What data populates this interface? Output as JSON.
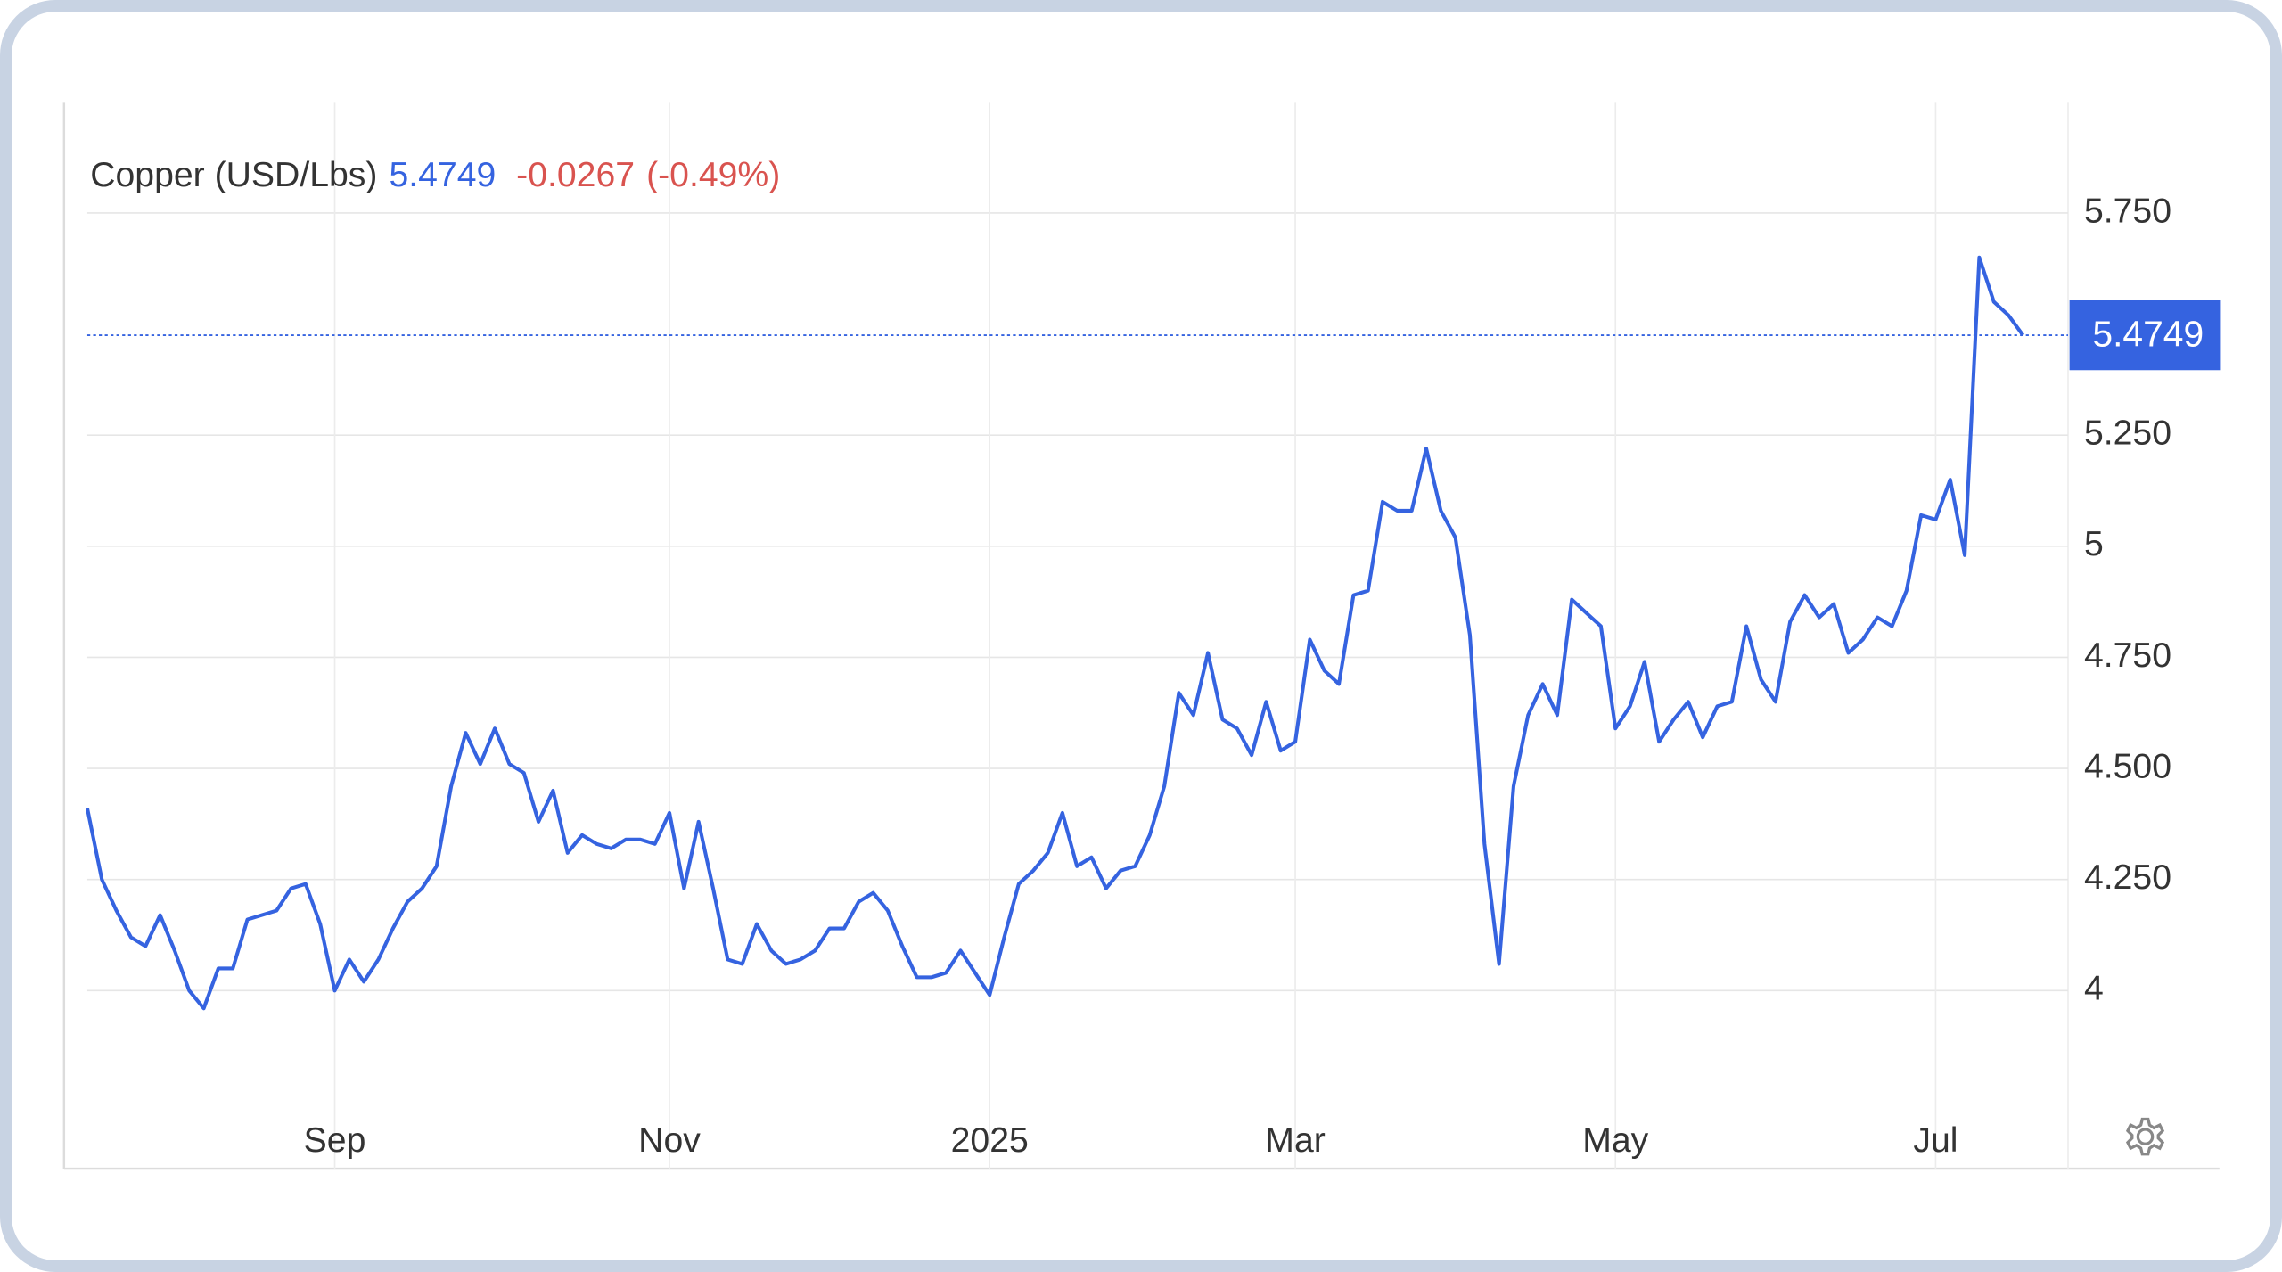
{
  "chart_data": {
    "type": "line",
    "title": "Copper (USD/Lbs)",
    "price": 5.4749,
    "change": -0.0267,
    "change_percent": "(-0.49%)",
    "categories": [
      null,
      null,
      null,
      null,
      null,
      null,
      null,
      null,
      null,
      null,
      null,
      null,
      null,
      null,
      null,
      null,
      null,
      "Sep",
      null,
      null,
      null,
      null,
      null,
      null,
      null,
      null,
      null,
      null,
      null,
      null,
      null,
      null,
      null,
      null,
      null,
      null,
      null,
      null,
      null,
      null,
      "Nov",
      null,
      null,
      null,
      null,
      null,
      null,
      null,
      null,
      null,
      null,
      null,
      null,
      null,
      null,
      null,
      null,
      null,
      null,
      null,
      null,
      null,
      "2025",
      null,
      null,
      null,
      null,
      null,
      null,
      null,
      null,
      null,
      null,
      null,
      null,
      null,
      null,
      null,
      null,
      null,
      null,
      null,
      null,
      "Mar",
      null,
      null,
      null,
      null,
      null,
      null,
      null,
      null,
      null,
      null,
      null,
      null,
      null,
      null,
      null,
      null,
      null,
      null,
      null,
      null,
      null,
      "May",
      null,
      null,
      null,
      null,
      null,
      null,
      null,
      null,
      null,
      null,
      null,
      null,
      null,
      null,
      null,
      null,
      null,
      null,
      null,
      null,
      null,
      "Jul",
      null,
      null,
      null,
      null,
      null,
      null
    ],
    "series": [
      {
        "name": "Copper",
        "color": "#3563e0",
        "values": [
          4.41,
          4.25,
          4.18,
          4.12,
          4.1,
          4.17,
          4.09,
          4.0,
          3.96,
          4.05,
          4.05,
          4.16,
          4.17,
          4.18,
          4.23,
          4.24,
          4.15,
          4.0,
          4.07,
          4.02,
          4.07,
          4.14,
          4.2,
          4.23,
          4.28,
          4.46,
          4.58,
          4.51,
          4.59,
          4.51,
          4.49,
          4.38,
          4.45,
          4.31,
          4.35,
          4.33,
          4.32,
          4.34,
          4.34,
          4.33,
          4.4,
          4.23,
          4.38,
          4.23,
          4.07,
          4.06,
          4.15,
          4.09,
          4.06,
          4.07,
          4.09,
          4.14,
          4.14,
          4.2,
          4.22,
          4.18,
          4.1,
          4.03,
          4.03,
          4.04,
          4.09,
          4.04,
          3.99,
          4.12,
          4.24,
          4.27,
          4.31,
          4.4,
          4.28,
          4.3,
          4.23,
          4.27,
          4.28,
          4.35,
          4.46,
          4.67,
          4.62,
          4.76,
          4.61,
          4.59,
          4.53,
          4.65,
          4.54,
          4.56,
          4.79,
          4.72,
          4.69,
          4.89,
          4.9,
          5.1,
          5.08,
          5.08,
          5.22,
          5.08,
          5.02,
          4.8,
          4.33,
          4.06,
          4.46,
          4.62,
          4.69,
          4.62,
          4.88,
          4.85,
          4.82,
          4.59,
          4.64,
          4.74,
          4.56,
          4.61,
          4.65,
          4.57,
          4.64,
          4.65,
          4.82,
          4.7,
          4.65,
          4.83,
          4.89,
          4.84,
          4.87,
          4.76,
          4.79,
          4.84,
          4.82,
          4.9,
          5.07,
          5.06,
          5.15,
          4.98,
          5.65,
          5.55,
          5.52,
          5.4749
        ]
      }
    ],
    "ylim": [
      3.75,
      6.0
    ],
    "yticks": [
      4,
      {
        "value": 4.25,
        "label": "4.250"
      },
      {
        "value": 4.5,
        "label": "4.500"
      },
      {
        "value": 4.75,
        "label": "4.750"
      },
      5,
      {
        "value": 5.25,
        "label": "5.250"
      },
      {
        "value": 5.75,
        "label": "5.750"
      }
    ],
    "grid": true
  }
}
